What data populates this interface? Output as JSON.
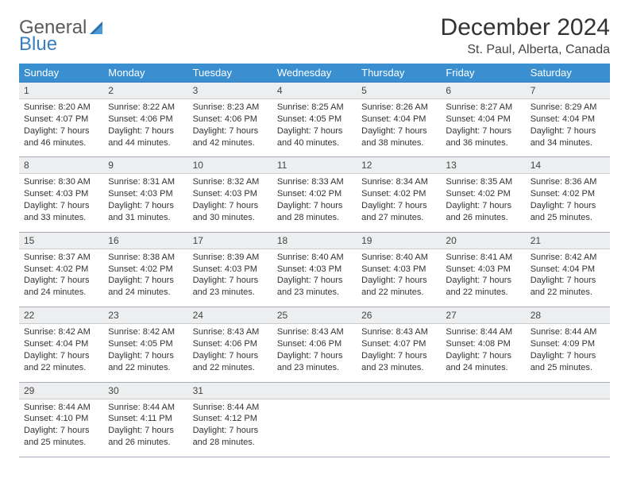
{
  "logo": {
    "word1": "General",
    "word2": "Blue"
  },
  "title": "December 2024",
  "location": "St. Paul, Alberta, Canada",
  "colors": {
    "header_bg": "#3a8fd0",
    "header_fg": "#ffffff",
    "daynum_bg": "#eceef0",
    "daynum_border_top": "#3a7ebf",
    "logo_gray": "#5a5a5a",
    "logo_blue": "#3a7ebf",
    "text": "#333333"
  },
  "days_of_week": [
    "Sunday",
    "Monday",
    "Tuesday",
    "Wednesday",
    "Thursday",
    "Friday",
    "Saturday"
  ],
  "weeks": [
    [
      {
        "n": "1",
        "sunrise": "Sunrise: 8:20 AM",
        "sunset": "Sunset: 4:07 PM",
        "day1": "Daylight: 7 hours",
        "day2": "and 46 minutes."
      },
      {
        "n": "2",
        "sunrise": "Sunrise: 8:22 AM",
        "sunset": "Sunset: 4:06 PM",
        "day1": "Daylight: 7 hours",
        "day2": "and 44 minutes."
      },
      {
        "n": "3",
        "sunrise": "Sunrise: 8:23 AM",
        "sunset": "Sunset: 4:06 PM",
        "day1": "Daylight: 7 hours",
        "day2": "and 42 minutes."
      },
      {
        "n": "4",
        "sunrise": "Sunrise: 8:25 AM",
        "sunset": "Sunset: 4:05 PM",
        "day1": "Daylight: 7 hours",
        "day2": "and 40 minutes."
      },
      {
        "n": "5",
        "sunrise": "Sunrise: 8:26 AM",
        "sunset": "Sunset: 4:04 PM",
        "day1": "Daylight: 7 hours",
        "day2": "and 38 minutes."
      },
      {
        "n": "6",
        "sunrise": "Sunrise: 8:27 AM",
        "sunset": "Sunset: 4:04 PM",
        "day1": "Daylight: 7 hours",
        "day2": "and 36 minutes."
      },
      {
        "n": "7",
        "sunrise": "Sunrise: 8:29 AM",
        "sunset": "Sunset: 4:04 PM",
        "day1": "Daylight: 7 hours",
        "day2": "and 34 minutes."
      }
    ],
    [
      {
        "n": "8",
        "sunrise": "Sunrise: 8:30 AM",
        "sunset": "Sunset: 4:03 PM",
        "day1": "Daylight: 7 hours",
        "day2": "and 33 minutes."
      },
      {
        "n": "9",
        "sunrise": "Sunrise: 8:31 AM",
        "sunset": "Sunset: 4:03 PM",
        "day1": "Daylight: 7 hours",
        "day2": "and 31 minutes."
      },
      {
        "n": "10",
        "sunrise": "Sunrise: 8:32 AM",
        "sunset": "Sunset: 4:03 PM",
        "day1": "Daylight: 7 hours",
        "day2": "and 30 minutes."
      },
      {
        "n": "11",
        "sunrise": "Sunrise: 8:33 AM",
        "sunset": "Sunset: 4:02 PM",
        "day1": "Daylight: 7 hours",
        "day2": "and 28 minutes."
      },
      {
        "n": "12",
        "sunrise": "Sunrise: 8:34 AM",
        "sunset": "Sunset: 4:02 PM",
        "day1": "Daylight: 7 hours",
        "day2": "and 27 minutes."
      },
      {
        "n": "13",
        "sunrise": "Sunrise: 8:35 AM",
        "sunset": "Sunset: 4:02 PM",
        "day1": "Daylight: 7 hours",
        "day2": "and 26 minutes."
      },
      {
        "n": "14",
        "sunrise": "Sunrise: 8:36 AM",
        "sunset": "Sunset: 4:02 PM",
        "day1": "Daylight: 7 hours",
        "day2": "and 25 minutes."
      }
    ],
    [
      {
        "n": "15",
        "sunrise": "Sunrise: 8:37 AM",
        "sunset": "Sunset: 4:02 PM",
        "day1": "Daylight: 7 hours",
        "day2": "and 24 minutes."
      },
      {
        "n": "16",
        "sunrise": "Sunrise: 8:38 AM",
        "sunset": "Sunset: 4:02 PM",
        "day1": "Daylight: 7 hours",
        "day2": "and 24 minutes."
      },
      {
        "n": "17",
        "sunrise": "Sunrise: 8:39 AM",
        "sunset": "Sunset: 4:03 PM",
        "day1": "Daylight: 7 hours",
        "day2": "and 23 minutes."
      },
      {
        "n": "18",
        "sunrise": "Sunrise: 8:40 AM",
        "sunset": "Sunset: 4:03 PM",
        "day1": "Daylight: 7 hours",
        "day2": "and 23 minutes."
      },
      {
        "n": "19",
        "sunrise": "Sunrise: 8:40 AM",
        "sunset": "Sunset: 4:03 PM",
        "day1": "Daylight: 7 hours",
        "day2": "and 22 minutes."
      },
      {
        "n": "20",
        "sunrise": "Sunrise: 8:41 AM",
        "sunset": "Sunset: 4:03 PM",
        "day1": "Daylight: 7 hours",
        "day2": "and 22 minutes."
      },
      {
        "n": "21",
        "sunrise": "Sunrise: 8:42 AM",
        "sunset": "Sunset: 4:04 PM",
        "day1": "Daylight: 7 hours",
        "day2": "and 22 minutes."
      }
    ],
    [
      {
        "n": "22",
        "sunrise": "Sunrise: 8:42 AM",
        "sunset": "Sunset: 4:04 PM",
        "day1": "Daylight: 7 hours",
        "day2": "and 22 minutes."
      },
      {
        "n": "23",
        "sunrise": "Sunrise: 8:42 AM",
        "sunset": "Sunset: 4:05 PM",
        "day1": "Daylight: 7 hours",
        "day2": "and 22 minutes."
      },
      {
        "n": "24",
        "sunrise": "Sunrise: 8:43 AM",
        "sunset": "Sunset: 4:06 PM",
        "day1": "Daylight: 7 hours",
        "day2": "and 22 minutes."
      },
      {
        "n": "25",
        "sunrise": "Sunrise: 8:43 AM",
        "sunset": "Sunset: 4:06 PM",
        "day1": "Daylight: 7 hours",
        "day2": "and 23 minutes."
      },
      {
        "n": "26",
        "sunrise": "Sunrise: 8:43 AM",
        "sunset": "Sunset: 4:07 PM",
        "day1": "Daylight: 7 hours",
        "day2": "and 23 minutes."
      },
      {
        "n": "27",
        "sunrise": "Sunrise: 8:44 AM",
        "sunset": "Sunset: 4:08 PM",
        "day1": "Daylight: 7 hours",
        "day2": "and 24 minutes."
      },
      {
        "n": "28",
        "sunrise": "Sunrise: 8:44 AM",
        "sunset": "Sunset: 4:09 PM",
        "day1": "Daylight: 7 hours",
        "day2": "and 25 minutes."
      }
    ],
    [
      {
        "n": "29",
        "sunrise": "Sunrise: 8:44 AM",
        "sunset": "Sunset: 4:10 PM",
        "day1": "Daylight: 7 hours",
        "day2": "and 25 minutes."
      },
      {
        "n": "30",
        "sunrise": "Sunrise: 8:44 AM",
        "sunset": "Sunset: 4:11 PM",
        "day1": "Daylight: 7 hours",
        "day2": "and 26 minutes."
      },
      {
        "n": "31",
        "sunrise": "Sunrise: 8:44 AM",
        "sunset": "Sunset: 4:12 PM",
        "day1": "Daylight: 7 hours",
        "day2": "and 28 minutes."
      },
      null,
      null,
      null,
      null
    ]
  ]
}
